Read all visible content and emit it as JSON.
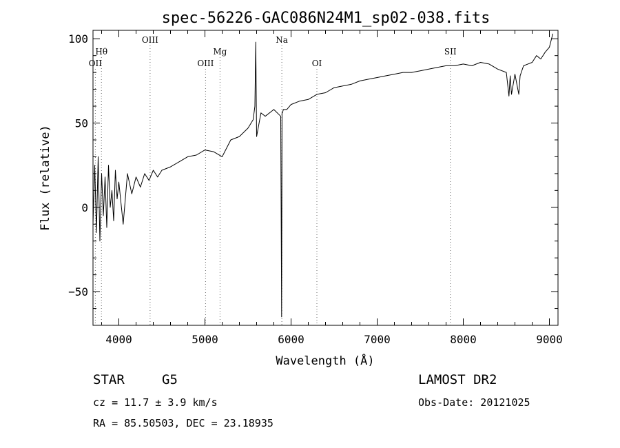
{
  "chart_data": {
    "type": "line",
    "title": "spec-56226-GAC086N24M1_sp02-038.fits",
    "xlabel": "Wavelength (Å)",
    "ylabel": "Flux (relative)",
    "xlim": [
      3700,
      9100
    ],
    "ylim": [
      -70,
      105
    ],
    "x_ticks": [
      4000,
      5000,
      6000,
      7000,
      8000,
      9000
    ],
    "y_ticks": [
      -50,
      0,
      50,
      100
    ],
    "grid": false,
    "line_color": "#000000",
    "series": [
      {
        "x": [
          3700,
          3720,
          3740,
          3760,
          3780,
          3800,
          3820,
          3840,
          3860,
          3880,
          3900,
          3920,
          3940,
          3960,
          3980,
          4000,
          4050,
          4100,
          4150,
          4200,
          4250,
          4300,
          4350,
          4400,
          4450,
          4500,
          4600,
          4700,
          4800,
          4900,
          5000,
          5100,
          5200,
          5300,
          5400,
          5500,
          5560,
          5580,
          5590,
          5600,
          5650,
          5700,
          5800,
          5880,
          5890,
          5895,
          5900,
          5910,
          5950,
          6000,
          6100,
          6200,
          6300,
          6400,
          6500,
          6600,
          6700,
          6800,
          6900,
          7000,
          7100,
          7200,
          7300,
          7400,
          7500,
          7600,
          7700,
          7800,
          7900,
          8000,
          8100,
          8200,
          8300,
          8400,
          8500,
          8530,
          8545,
          8560,
          8600,
          8645,
          8660,
          8700,
          8800,
          8850,
          8900,
          8950,
          9000,
          9020,
          9040
        ],
        "y": [
          -10,
          25,
          -15,
          30,
          -20,
          20,
          -5,
          18,
          -12,
          25,
          0,
          10,
          -8,
          22,
          5,
          15,
          -10,
          20,
          8,
          18,
          12,
          20,
          16,
          22,
          18,
          22,
          24,
          27,
          30,
          31,
          34,
          33,
          30,
          40,
          42,
          47,
          52,
          60,
          98,
          42,
          56,
          54,
          58,
          54,
          -65,
          56,
          56,
          58,
          58,
          61,
          63,
          64,
          67,
          68,
          71,
          72,
          73,
          75,
          76,
          77,
          78,
          79,
          80,
          80,
          81,
          82,
          83,
          84,
          84,
          85,
          84,
          86,
          85,
          82,
          80,
          66,
          78,
          67,
          79,
          67,
          78,
          84,
          86,
          90,
          88,
          92,
          95,
          99,
          103
        ]
      }
    ],
    "line_markers": [
      {
        "label": "OII",
        "x": 3727,
        "level": "low"
      },
      {
        "label": "Hθ",
        "x": 3798,
        "level": "mid"
      },
      {
        "label": "OIII",
        "x": 4363,
        "level": "top"
      },
      {
        "label": "OIII",
        "x": 5007,
        "level": "low"
      },
      {
        "label": "Mg",
        "x": 5175,
        "level": "mid"
      },
      {
        "label": "Na",
        "x": 5893,
        "level": "top"
      },
      {
        "label": "OI",
        "x": 6300,
        "level": "low"
      },
      {
        "label": "SII",
        "x": 7850,
        "level": "mid"
      }
    ]
  },
  "info": {
    "object_class": "STAR",
    "subclass": "G5",
    "survey": "LAMOST DR2",
    "cz": "cz =  11.7 ± 3.9 km/s",
    "obs_date": "Obs-Date: 20121025",
    "coords": "RA =  85.50503, DEC =  23.18935"
  }
}
